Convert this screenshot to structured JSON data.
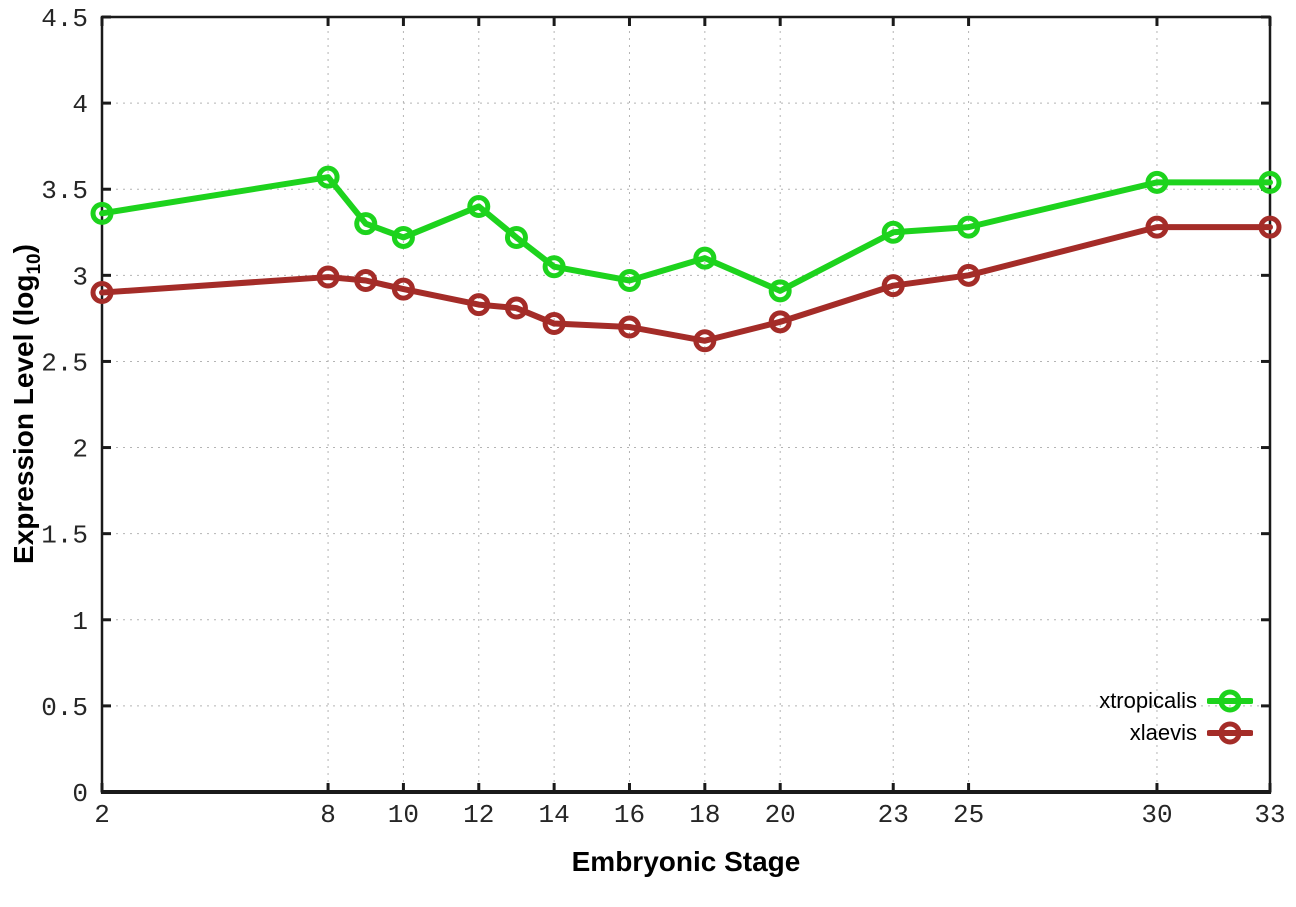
{
  "figure": {
    "xlabel": "Embryonic Stage",
    "ylabel_main": "Expression Level (log",
    "ylabel_sub": "10",
    "ylabel_close": ")"
  },
  "chart_data": {
    "type": "line",
    "title": "",
    "xlabel": "Embryonic Stage",
    "ylabel": "Expression Level (log10)",
    "xlim": [
      2,
      33
    ],
    "ylim": [
      0,
      4.5
    ],
    "xticks": [
      2,
      8,
      10,
      12,
      14,
      16,
      18,
      20,
      23,
      25,
      30,
      33
    ],
    "yticks": [
      0,
      0.5,
      1,
      1.5,
      2,
      2.5,
      3,
      3.5,
      4,
      4.5
    ],
    "ytick_labels": [
      "0",
      "0.5",
      "1",
      "1.5",
      "2",
      "2.5",
      "3",
      "3.5",
      "4",
      "4.5"
    ],
    "grid": true,
    "legend_position": "bottom-right",
    "x": [
      2,
      8,
      9,
      10,
      12,
      13,
      14,
      16,
      18,
      20,
      23,
      25,
      30,
      33
    ],
    "series": [
      {
        "name": "xtropicalis",
        "color": "#1dd31d",
        "values": [
          3.36,
          3.57,
          3.3,
          3.22,
          3.4,
          3.22,
          3.05,
          2.97,
          3.1,
          2.91,
          3.25,
          3.28,
          3.54,
          3.54
        ]
      },
      {
        "name": "xlaevis",
        "color": "#a42c28",
        "values": [
          2.9,
          2.99,
          2.97,
          2.92,
          2.83,
          2.81,
          2.72,
          2.7,
          2.62,
          2.73,
          2.94,
          3.0,
          3.28,
          3.28
        ]
      }
    ]
  }
}
